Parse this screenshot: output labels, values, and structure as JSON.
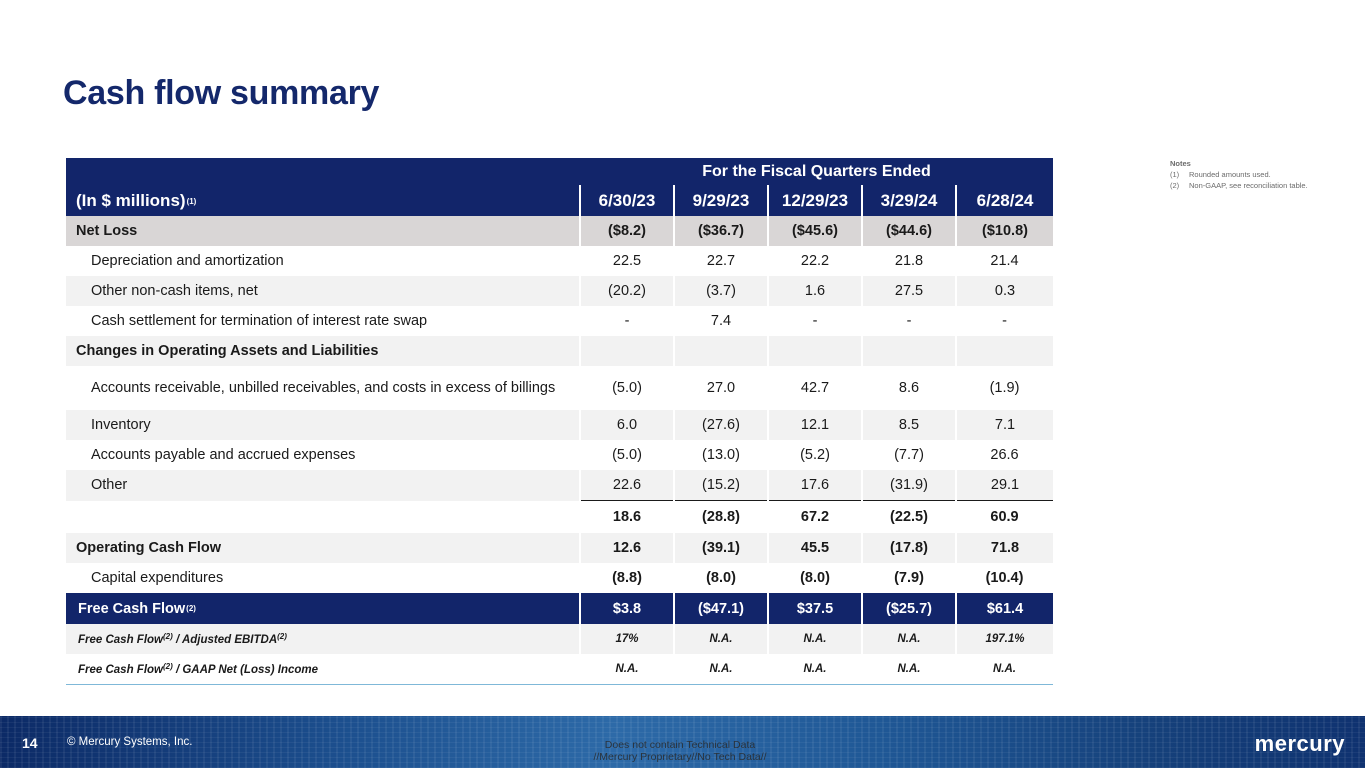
{
  "title": "Cash flow summary",
  "notes": {
    "heading": "Notes",
    "items": [
      {
        "num": "(1)",
        "text": "Rounded amounts used."
      },
      {
        "num": "(2)",
        "text": "Non-GAAP, see reconciliation table."
      }
    ]
  },
  "table": {
    "period_header": "For the Fiscal Quarters Ended",
    "units_label": "(In $ millions)",
    "units_note": "(1)",
    "quarters": [
      "6/30/23",
      "9/29/23",
      "12/29/23",
      "3/29/24",
      "6/28/24"
    ],
    "net_loss": {
      "label": "Net Loss",
      "values": [
        "($8.2)",
        "($36.7)",
        "($45.6)",
        "($44.6)",
        "($10.8)"
      ]
    },
    "dep_amort": {
      "label": "Depreciation and amortization",
      "values": [
        "22.5",
        "22.7",
        "22.2",
        "21.8",
        "21.4"
      ]
    },
    "other_noncash": {
      "label": "Other non-cash items, net",
      "values": [
        "(20.2)",
        "(3.7)",
        "1.6",
        "27.5",
        "0.3"
      ]
    },
    "swap": {
      "label": "Cash settlement for termination of interest rate swap",
      "values": [
        "-",
        "7.4",
        "-",
        "-",
        "-"
      ]
    },
    "changes_heading": "Changes in Operating Assets and Liabilities",
    "receivables": {
      "label": "Accounts receivable, unbilled receivables, and costs in excess of billings",
      "values": [
        "(5.0)",
        "27.0",
        "42.7",
        "8.6",
        "(1.9)"
      ]
    },
    "inventory": {
      "label": "Inventory",
      "values": [
        "6.0",
        "(27.6)",
        "12.1",
        "8.5",
        "7.1"
      ]
    },
    "payables": {
      "label": "Accounts payable and accrued expenses",
      "values": [
        "(5.0)",
        "(13.0)",
        "(5.2)",
        "(7.7)",
        "26.6"
      ]
    },
    "other": {
      "label": "Other",
      "values": [
        "22.6",
        "(15.2)",
        "17.6",
        "(31.9)",
        "29.1"
      ]
    },
    "subtotal": {
      "values": [
        "18.6",
        "(28.8)",
        "67.2",
        "(22.5)",
        "60.9"
      ]
    },
    "ocf": {
      "label": "Operating Cash Flow",
      "values": [
        "12.6",
        "(39.1)",
        "45.5",
        "(17.8)",
        "71.8"
      ]
    },
    "capex": {
      "label": "Capital expenditures",
      "values": [
        "(8.8)",
        "(8.0)",
        "(8.0)",
        "(7.9)",
        "(10.4)"
      ]
    },
    "fcf": {
      "label": "Free Cash Flow",
      "note": "(2)",
      "values": [
        "$3.8",
        "($47.1)",
        "$37.5",
        "($25.7)",
        "$61.4"
      ]
    },
    "fcf_ebitda": {
      "label_a": "Free Cash Flow",
      "note_a": "(2)",
      "label_b": " / Adjusted EBITDA",
      "note_b": "(2)",
      "values": [
        "17%",
        "N.A.",
        "N.A.",
        "N.A.",
        "197.1%"
      ]
    },
    "fcf_gaap": {
      "label_a": "Free Cash Flow",
      "note_a": "(2)",
      "label_b": " / GAAP Net (Loss) Income",
      "values": [
        "N.A.",
        "N.A.",
        "N.A.",
        "N.A.",
        "N.A."
      ]
    }
  },
  "footer": {
    "page_number": "14",
    "copyright": "© Mercury Systems, Inc.",
    "disclaimer_1": "Does not contain Technical Data",
    "disclaimer_2": "//Mercury Proprietary//No Tech Data//",
    "logo_text": "mercury"
  }
}
